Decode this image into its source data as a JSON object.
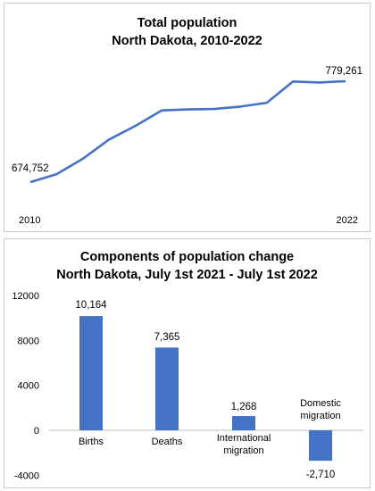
{
  "chart_data": [
    {
      "type": "line",
      "title": "Total population",
      "subtitle": "North Dakota, 2010-2022",
      "x": [
        2010,
        2011,
        2012,
        2013,
        2014,
        2015,
        2016,
        2017,
        2018,
        2019,
        2020,
        2021,
        2022
      ],
      "values": [
        674752,
        683000,
        699000,
        719000,
        733000,
        749000,
        750000,
        750500,
        753000,
        757000,
        779000,
        778000,
        779261
      ],
      "x_tick_labels": [
        "2010",
        "2022"
      ],
      "data_labels": {
        "first": "674,752",
        "last": "779,261"
      },
      "color": "#4472c4",
      "grid": false
    },
    {
      "type": "bar",
      "title": "Components of population change",
      "subtitle": "North Dakota, July 1st 2021 - July 1st 2022",
      "categories": [
        "Births",
        "Deaths",
        "International migration",
        "Domestic migration"
      ],
      "values": [
        10164,
        7365,
        1268,
        -2710
      ],
      "data_labels": [
        "10,164",
        "7,365",
        "1,268",
        "-2,710"
      ],
      "ylim": [
        -4000,
        12000
      ],
      "yticks": [
        "12000",
        "8000",
        "4000",
        "0",
        "-4000"
      ],
      "color": "#4472c4",
      "grid": false
    }
  ]
}
